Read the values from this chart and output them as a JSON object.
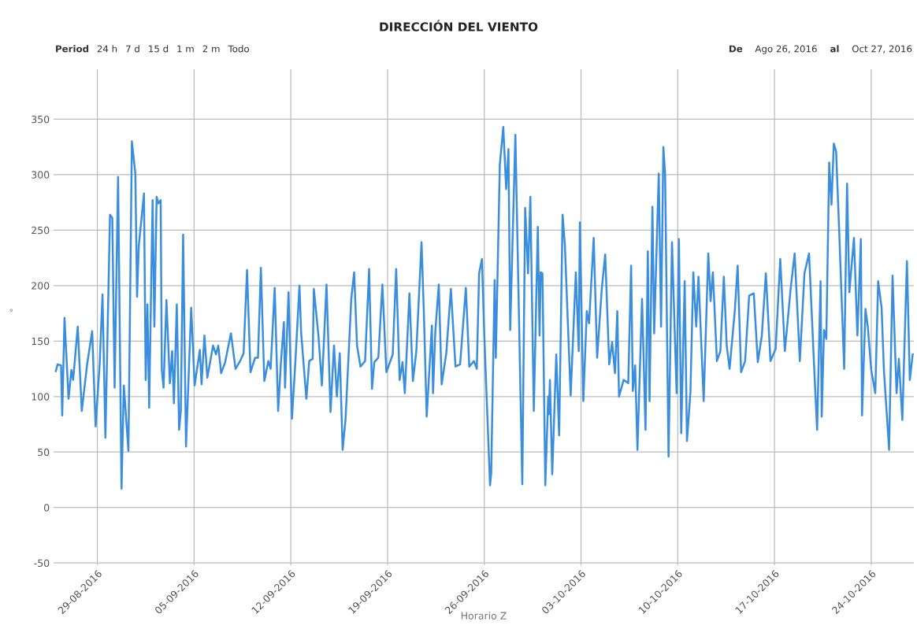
{
  "chart_data": {
    "type": "line",
    "title": "DIRECCIÓN DEL VIENTO",
    "xlabel": "Horario Z",
    "ylabel": "°",
    "annotations": [
      "Period",
      "24 h",
      "7 d",
      "15 d",
      "1 m",
      "2 m",
      "Todo",
      "De",
      "Ago 26, 2016",
      "al",
      "Oct 27, 2016"
    ],
    "xlim": [
      "2016-08-25T20:00",
      "2016-10-27T02:00"
    ],
    "xticks": [
      {
        "value": "2016-08-29",
        "label": "29-08-2016"
      },
      {
        "value": "2016-09-05",
        "label": "05-09-2016"
      },
      {
        "value": "2016-09-12",
        "label": "12-09-2016"
      },
      {
        "value": "2016-09-19",
        "label": "19-09-2016"
      },
      {
        "value": "2016-09-26",
        "label": "26-09-2016"
      },
      {
        "value": "2016-10-03",
        "label": "03-10-2016"
      },
      {
        "value": "2016-10-10",
        "label": "10-10-2016"
      },
      {
        "value": "2016-10-17",
        "label": "17-10-2016"
      },
      {
        "value": "2016-10-24",
        "label": "24-10-2016"
      }
    ],
    "ylim": [
      -52,
      395
    ],
    "yticks": [
      -50,
      0,
      50,
      100,
      150,
      200,
      250,
      300,
      350
    ],
    "grid": true,
    "marker": "none",
    "line_style": "solid",
    "series": [
      {
        "color": "#3b8ede",
        "x": [
          "2016-08-26T00:00",
          "2016-08-26T03:00",
          "2016-08-26T09:00",
          "2016-08-26T11:00",
          "2016-08-26T15:00",
          "2016-08-26T22:00",
          "2016-08-27T03:00",
          "2016-08-27T06:00",
          "2016-08-27T14:00",
          "2016-08-27T21:00",
          "2016-08-28T06:00",
          "2016-08-28T15:00",
          "2016-08-28T21:00",
          "2016-08-29T04:00",
          "2016-08-29T09:00",
          "2016-08-29T14:00",
          "2016-08-29T22:00",
          "2016-08-30T02:00",
          "2016-08-30T06:00",
          "2016-08-30T12:00",
          "2016-08-30T18:00",
          "2016-08-30T22:00",
          "2016-08-31T06:00",
          "2016-08-31T12:00",
          "2016-08-31T18:00",
          "2016-08-31T21:00",
          "2016-09-01T00:00",
          "2016-09-01T09:00",
          "2016-09-01T12:00",
          "2016-09-01T15:00",
          "2016-09-01T18:00",
          "2016-09-02T00:00",
          "2016-09-02T03:00",
          "2016-09-02T07:00",
          "2016-09-02T10:00",
          "2016-09-02T14:00",
          "2016-09-02T16:00",
          "2016-09-02T19:00",
          "2016-09-03T00:00",
          "2016-09-03T06:00",
          "2016-09-03T10:00",
          "2016-09-03T13:00",
          "2016-09-03T18:00",
          "2016-09-03T22:00",
          "2016-09-04T01:00",
          "2016-09-04T05:00",
          "2016-09-04T10:00",
          "2016-09-04T19:00",
          "2016-09-05T01:00",
          "2016-09-05T10:00",
          "2016-09-05T13:00",
          "2016-09-05T18:00",
          "2016-09-05T23:00",
          "2016-09-06T09:00",
          "2016-09-06T14:00",
          "2016-09-06T18:00",
          "2016-09-06T23:00",
          "2016-09-07T06:00",
          "2016-09-07T16:00",
          "2016-09-08T00:00",
          "2016-09-08T08:00",
          "2016-09-08T14:00",
          "2016-09-08T20:00",
          "2016-09-09T02:00",
          "2016-09-09T10:00",
          "2016-09-09T15:00",
          "2016-09-09T20:00",
          "2016-09-10T02:00",
          "2016-09-10T09:00",
          "2016-09-10T13:00",
          "2016-09-10T20:00",
          "2016-09-11T02:00",
          "2016-09-11T07:00",
          "2016-09-11T12:00",
          "2016-09-11T14:00",
          "2016-09-11T20:00",
          "2016-09-12T02:00",
          "2016-09-12T08:00",
          "2016-09-12T15:00",
          "2016-09-12T18:00",
          "2016-09-13T03:00",
          "2016-09-13T08:00",
          "2016-09-13T14:00",
          "2016-09-13T16:00",
          "2016-09-14T00:00",
          "2016-09-14T06:00",
          "2016-09-14T14:00",
          "2016-09-14T21:00",
          "2016-09-15T03:00",
          "2016-09-15T08:00",
          "2016-09-15T13:00",
          "2016-09-15T18:00",
          "2016-09-15T23:00",
          "2016-09-16T09:00",
          "2016-09-16T14:00",
          "2016-09-16T19:00",
          "2016-09-17T01:00",
          "2016-09-17T09:00",
          "2016-09-17T16:00",
          "2016-09-17T21:00",
          "2016-09-18T01:00",
          "2016-09-18T08:00",
          "2016-09-18T15:00",
          "2016-09-18T22:00",
          "2016-09-19T09:00",
          "2016-09-19T15:00",
          "2016-09-19T21:00",
          "2016-09-20T02:00",
          "2016-09-20T06:00",
          "2016-09-20T14:00",
          "2016-09-20T20:00",
          "2016-09-21T02:00",
          "2016-09-21T11:00",
          "2016-09-21T15:00",
          "2016-09-21T20:00",
          "2016-09-22T05:00",
          "2016-09-22T07:00",
          "2016-09-22T11:00",
          "2016-09-22T17:00",
          "2016-09-22T22:00",
          "2016-09-23T06:00",
          "2016-09-23T14:00",
          "2016-09-23T22:00",
          "2016-09-24T06:00",
          "2016-09-24T16:00",
          "2016-09-24T22:00",
          "2016-09-25T06:00",
          "2016-09-25T11:00",
          "2016-09-25T15:00",
          "2016-09-25T20:00",
          "2016-09-26T00:00",
          "2016-09-26T10:00",
          "2016-09-26T12:00",
          "2016-09-26T18:00",
          "2016-09-26T20:00",
          "2016-09-27T03:00",
          "2016-09-27T09:00",
          "2016-09-27T14:00",
          "2016-09-27T18:00",
          "2016-09-27T21:00",
          "2016-09-28T06:00",
          "2016-09-28T18:00",
          "2016-09-28T23:00",
          "2016-09-29T04:00",
          "2016-09-29T08:00",
          "2016-09-29T14:00",
          "2016-09-29T21:00",
          "2016-09-30T00:00",
          "2016-09-30T02:00",
          "2016-09-30T05:00",
          "2016-09-30T10:00",
          "2016-09-30T15:00",
          "2016-09-30T16:00",
          "2016-09-30T18:00",
          "2016-09-30T22:00",
          "2016-10-01T05:00",
          "2016-10-01T10:00",
          "2016-10-01T16:00",
          "2016-10-01T20:00",
          "2016-10-02T02:00",
          "2016-10-02T06:00",
          "2016-10-02T15:00",
          "2016-10-02T20:00",
          "2016-10-02T22:00",
          "2016-10-03T04:00",
          "2016-10-03T10:00",
          "2016-10-03T14:00",
          "2016-10-03T22:00",
          "2016-10-04T04:00",
          "2016-10-04T12:00",
          "2016-10-04T18:00",
          "2016-10-05T01:00",
          "2016-10-05T06:00",
          "2016-10-05T11:00",
          "2016-10-05T15:00",
          "2016-10-05T18:00",
          "2016-10-06T02:00",
          "2016-10-06T10:00",
          "2016-10-06T15:00",
          "2016-10-06T18:00",
          "2016-10-06T22:00",
          "2016-10-07T02:00",
          "2016-10-07T10:00",
          "2016-10-07T16:00",
          "2016-10-07T20:00",
          "2016-10-07T23:00",
          "2016-10-08T04:00",
          "2016-10-08T07:00",
          "2016-10-08T15:00",
          "2016-10-08T19:00",
          "2016-10-08T23:00",
          "2016-10-09T02:00",
          "2016-10-09T08:00",
          "2016-10-09T14:00",
          "2016-10-09T22:00",
          "2016-10-10T02:00",
          "2016-10-10T06:00",
          "2016-10-10T12:00",
          "2016-10-10T16:00",
          "2016-10-10T22:00",
          "2016-10-11T03:00",
          "2016-10-11T08:00",
          "2016-10-11T12:00",
          "2016-10-11T21:00",
          "2016-10-12T05:00",
          "2016-10-12T09:00",
          "2016-10-12T13:00",
          "2016-10-12T20:00",
          "2016-10-13T02:00",
          "2016-10-13T08:00",
          "2016-10-13T13:00",
          "2016-10-13T18:00",
          "2016-10-14T03:00",
          "2016-10-14T08:00",
          "2016-10-14T14:00",
          "2016-10-14T21:00",
          "2016-10-15T04:00",
          "2016-10-15T12:00",
          "2016-10-15T19:00",
          "2016-10-16T02:00",
          "2016-10-16T09:00",
          "2016-10-16T17:00",
          "2016-10-17T02:00",
          "2016-10-17T10:00",
          "2016-10-17T18:00",
          "2016-10-18T04:00",
          "2016-10-18T11:00",
          "2016-10-18T20:00",
          "2016-10-19T04:00",
          "2016-10-19T12:00",
          "2016-10-19T21:00",
          "2016-10-20T02:00",
          "2016-10-20T08:00",
          "2016-10-20T10:00",
          "2016-10-20T14:00",
          "2016-10-20T18:00",
          "2016-10-20T23:00",
          "2016-10-21T03:00",
          "2016-10-21T07:00",
          "2016-10-21T11:00",
          "2016-10-21T16:00",
          "2016-10-22T01:00",
          "2016-10-22T06:00",
          "2016-10-22T10:00",
          "2016-10-22T18:00",
          "2016-10-23T00:00",
          "2016-10-23T06:00",
          "2016-10-23T08:00",
          "2016-10-23T14:00",
          "2016-10-23T18:00",
          "2016-10-24T00:00",
          "2016-10-24T07:00",
          "2016-10-24T12:00",
          "2016-10-24T18:00",
          "2016-10-24T22:00",
          "2016-10-25T07:00",
          "2016-10-25T13:00",
          "2016-10-25T20:00",
          "2016-10-26T00:00",
          "2016-10-26T06:00",
          "2016-10-26T14:00",
          "2016-10-26T19:00",
          "2016-10-27T00:00"
        ],
        "values": [
          123,
          129,
          128,
          83,
          171,
          98,
          124,
          115,
          163,
          87,
          128,
          159,
          73,
          129,
          192,
          63,
          264,
          261,
          108,
          298,
          17,
          110,
          51,
          330,
          301,
          190,
          236,
          283,
          115,
          183,
          90,
          277,
          163,
          280,
          274,
          277,
          124,
          108,
          187,
          112,
          141,
          94,
          183,
          70,
          87,
          246,
          55,
          180,
          110,
          142,
          111,
          155,
          117,
          146,
          138,
          146,
          121,
          131,
          157,
          125,
          132,
          139,
          214,
          122,
          135,
          135,
          216,
          114,
          132,
          125,
          198,
          87,
          132,
          167,
          108,
          194,
          80,
          132,
          200,
          157,
          98,
          132,
          134,
          197,
          155,
          110,
          201,
          86,
          146,
          100,
          139,
          52,
          79,
          188,
          212,
          146,
          127,
          132,
          215,
          107,
          131,
          135,
          201,
          122,
          138,
          215,
          115,
          131,
          103,
          193,
          114,
          141,
          239,
          177,
          82,
          164,
          103,
          159,
          201,
          111,
          139,
          197,
          127,
          129,
          198,
          127,
          132,
          125,
          211,
          224,
          155,
          20,
          31,
          205,
          135,
          309,
          343,
          287,
          323,
          160,
          336,
          21,
          270,
          211,
          280,
          87,
          253,
          155,
          212,
          211,
          20,
          100,
          84,
          115,
          30,
          138,
          65,
          264,
          236,
          155,
          101,
          212,
          141,
          257,
          96,
          177,
          166,
          243,
          135,
          197,
          228,
          129,
          149,
          121,
          177,
          100,
          115,
          112,
          218,
          105,
          128,
          52,
          188,
          70,
          231,
          96,
          271,
          157,
          301,
          163,
          325,
          301,
          46,
          239,
          103,
          242,
          67,
          204,
          60,
          104,
          212,
          163,
          208,
          96,
          229,
          186,
          212,
          132,
          141,
          208,
          146,
          125,
          177,
          218,
          122,
          132,
          191,
          193,
          131,
          155,
          211,
          132,
          143,
          224,
          141,
          197,
          229,
          132,
          211,
          229,
          125,
          70,
          204,
          82,
          160,
          152,
          311,
          273,
          328,
          321,
          254,
          125,
          292,
          194,
          243,
          155,
          242,
          83,
          179,
          163,
          124,
          103,
          204,
          180,
          124,
          52,
          209,
          103,
          134,
          79,
          222,
          115,
          138
        ]
      }
    ]
  }
}
